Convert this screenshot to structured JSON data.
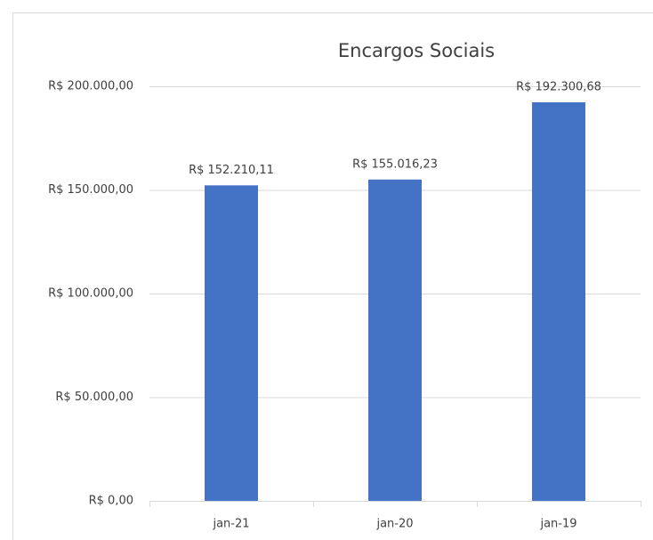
{
  "chart_data": {
    "type": "bar",
    "title": "Encargos Sociais",
    "categories": [
      "jan-21",
      "jan-20",
      "jan-19"
    ],
    "values": [
      152210.11,
      155016.23,
      192300.68
    ],
    "value_labels": [
      "R$ 152.210,11",
      "R$ 155.016,23",
      "R$ 192.300,68"
    ],
    "color": "#4472c4",
    "ylim": [
      0,
      200000
    ],
    "yticks": [
      {
        "value": 0,
        "label": "R$ 0,00"
      },
      {
        "value": 50000,
        "label": "R$ 50.000,00"
      },
      {
        "value": 100000,
        "label": "R$ 100.000,00"
      },
      {
        "value": 150000,
        "label": "R$ 150.000,00"
      },
      {
        "value": 200000,
        "label": "R$ 200.000,00"
      }
    ],
    "grid": true
  }
}
